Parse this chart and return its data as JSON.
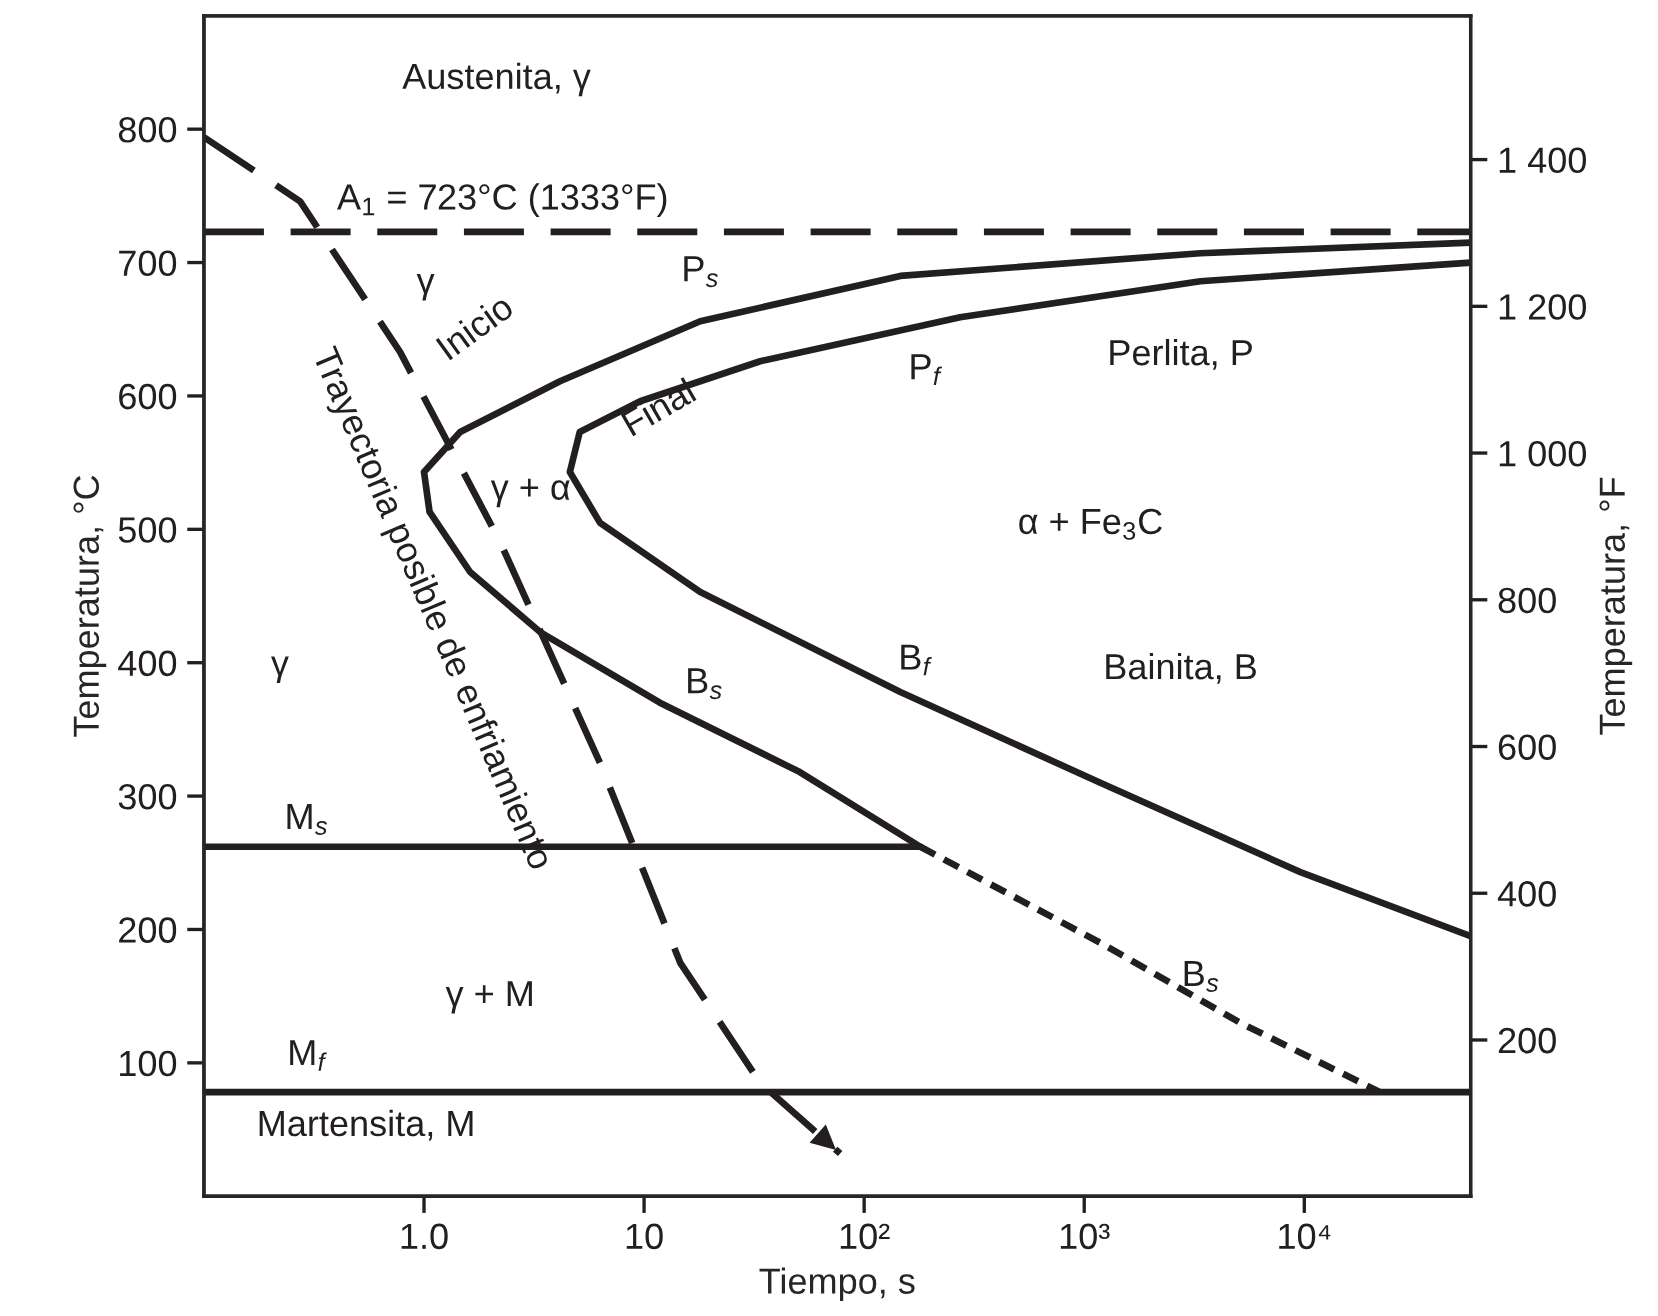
{
  "chart_data": {
    "type": "line",
    "xlabel": "Tiempo, s",
    "ylabel": "Temperatura, °C",
    "y2label": "Temperatura, °F",
    "log": "x",
    "grid": false,
    "legend": false,
    "marker": "none",
    "xlim": [
      0.1,
      57000
    ],
    "xticks": [
      {
        "value": 1,
        "label": "1.0"
      },
      10,
      {
        "value": 100,
        "label": "10²"
      },
      {
        "value": 1000,
        "label": "10³"
      },
      {
        "value": 10000,
        "label": "10⁴"
      }
    ],
    "ylim": [
      0,
      885
    ],
    "yticks": [
      100,
      200,
      300,
      400,
      500,
      600,
      700,
      800
    ],
    "y2lim": [
      -13,
      1596
    ],
    "y2ticks": [
      200,
      400,
      600,
      800,
      {
        "value": 1000,
        "label": "1 000"
      },
      {
        "value": 1200,
        "label": "1 200"
      },
      {
        "value": 1400,
        "label": "1 400"
      }
    ],
    "series": [
      {
        "color": "#231f20",
        "line_style": "solid",
        "x": [
          57000,
          3370,
          146,
          18,
          4.15,
          1.46,
          1.0,
          1.06,
          1.62,
          3.37,
          11.8,
          51,
          180
        ],
        "values": [
          715,
          707,
          690,
          656,
          611,
          573,
          543,
          513,
          468,
          423,
          370,
          318,
          262
        ]
      },
      {
        "color": "#231f20",
        "line_style": "dotted",
        "x": [
          180,
          1183,
          5120,
          22100
        ],
        "values": [
          262,
          190,
          130,
          78
        ]
      },
      {
        "color": "#231f20",
        "line_style": "solid",
        "x": [
          57000,
          3370,
          273,
          33.7,
          9.6,
          5.1,
          4.6,
          6.3,
          18,
          146,
          1183,
          9600,
          57000
        ],
        "values": [
          700,
          686,
          659,
          626,
          596,
          573,
          543,
          505,
          453,
          378,
          310,
          243,
          195
        ]
      },
      {
        "color": "#231f20",
        "line_style": "solid",
        "x": [
          0.1,
          180
        ],
        "values": [
          262,
          262
        ]
      },
      {
        "color": "#231f20",
        "line_style": "dashed",
        "x": [
          0.1,
          0.273,
          0.778,
          2.21,
          6.3,
          14.6,
          33.7,
          77.8
        ],
        "values": [
          794,
          746,
          633,
          491,
          325,
          175,
          85,
          32
        ]
      }
    ],
    "ref_lines": [
      {
        "axis": "y",
        "value": 723,
        "label": "A$_{1}$ = 723°C (1333°F)",
        "line_style": "dashed",
        "color": "#231f20"
      },
      {
        "axis": "y",
        "value": 78,
        "line_style": "solid",
        "color": "#231f20"
      }
    ],
    "annotations": [
      "Austenita, γ",
      "γ",
      "P$_{s}$",
      "Inicio",
      "Final",
      "P$_{f}$",
      "Perlita, P",
      "γ + α",
      "α + Fe$_{3}$C",
      "γ",
      "Trayectoria posible de enfriamiento",
      "B$_{s}$",
      "B$_{f}$",
      "Bainita, B",
      "M$_{s}$",
      "B$_{s}$",
      "γ + M",
      "M$_{f}$",
      "Martensita, M"
    ]
  }
}
